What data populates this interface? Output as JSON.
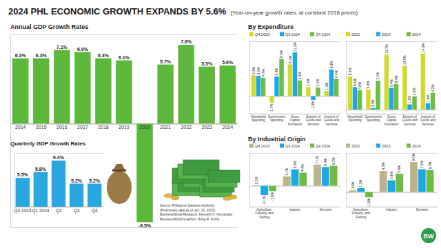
{
  "header": {
    "title": "2024 PHL ECONOMIC GROWTH EXPANDS BY 5.6%",
    "subtitle": "(Year-on-year growth rates, at constant 2018 prices)"
  },
  "source": [
    "Source: Philippine Statistics Authority",
    "(Preliminary data as of Jan. 30, 2025)",
    "BusinessWorld Research: Kenneth H. Hernandez",
    "BusinessWorld Graphics: Bong R. Fortin"
  ],
  "logo": "BW",
  "chart_data": [
    {
      "type": "bar",
      "title": "Annual GDP Growth Rates",
      "categories": [
        "2014",
        "2015",
        "2016",
        "2017",
        "2018",
        "2019",
        "2020",
        "2021",
        "2022",
        "2023",
        "2024"
      ],
      "values": [
        6.3,
        6.3,
        7.1,
        6.9,
        6.3,
        6.1,
        -9.5,
        5.7,
        7.6,
        5.5,
        5.6
      ],
      "value_labels": [
        "6.3%",
        "6.3%",
        "7.1%",
        "6.9%",
        "6.3%",
        "6.1%",
        "-9.5%",
        "5.7%",
        "7.6%",
        "5.5%",
        "5.6%"
      ],
      "color": "#5cb83a",
      "ylim": [
        -10,
        8.6
      ],
      "yticks": [
        0
      ],
      "data_labels": true,
      "tick_labels": "x"
    },
    {
      "type": "bar",
      "title": "Quarterly GDP Growth Rates",
      "categories": [
        "Q4 2023",
        "Q1 2024",
        "Q2",
        "Q3",
        "Q4"
      ],
      "values": [
        5.5,
        5.8,
        6.4,
        5.2,
        5.2
      ],
      "value_labels": [
        "5.5%",
        "5.8%",
        "6.4%",
        "5.2%",
        "5.2%"
      ],
      "color": "#29a7e1",
      "ylim": [
        4,
        6.8
      ],
      "yticks": [
        4
      ],
      "data_labels": true,
      "tick_labels": "x"
    },
    {
      "type": "bar",
      "title": "By Expenditure",
      "categories": [
        "Household Spending",
        "Government Spending",
        "Gross Capital Formation",
        "Exports of Goods and Services",
        "Imports of Goods and Services"
      ],
      "series": [
        {
          "name": "Q4 2023",
          "color": "#d3d92b",
          "values": [
            5.3,
            -1.7,
            8.1,
            2.3,
            1.3
          ],
          "value_labels": [
            "5.3%",
            "-1.7%",
            "8.1%",
            "2.3%",
            "1.3%"
          ]
        },
        {
          "name": "Q3 2024",
          "color": "#1ea7e6",
          "values": [
            5.2,
            5.0,
            11.2,
            -1.0,
            6.8
          ],
          "value_labels": [
            "5.2%",
            "5.0%",
            "11.2%",
            "-1.0%",
            "6.8%"
          ]
        },
        {
          "name": "Q4 2024",
          "color": "#6cbd45",
          "values": [
            4.7,
            9.5,
            4.0,
            2.2,
            4.4
          ],
          "value_labels": [
            "4.7%",
            "9.5%",
            "4.0%",
            "2.2%",
            "4.4%"
          ]
        }
      ],
      "ylim": [
        -4.5,
        14
      ],
      "yticks": [
        0
      ],
      "legend": "upper left",
      "data_labels": true,
      "tick_labels": "x"
    },
    {
      "type": "bar",
      "categories": [
        "Household Spending",
        "Government Spending",
        "Gross Capital Formation",
        "Exports of Goods and Services",
        "Imports of Goods and Services"
      ],
      "series": [
        {
          "name": "2022",
          "color": "#d3d92b",
          "values": [
            8.3,
            5.0,
            13.7,
            10.9,
            14.0
          ],
          "value_labels": [
            "8.3%",
            "5.0%",
            "13.7%",
            "10.9%",
            "14.0%"
          ]
        },
        {
          "name": "2023",
          "color": "#1ea7e6",
          "values": [
            5.6,
            0.4,
            5.4,
            1.3,
            1.6
          ],
          "value_labels": [
            "5.6%",
            "0.4%",
            "5.4%",
            "1.3%",
            "1.6%"
          ]
        },
        {
          "name": "2024",
          "color": "#6cbd45",
          "values": [
            4.8,
            7.2,
            6.4,
            3.3,
            4.2
          ],
          "value_labels": [
            "4.8%",
            "7.2%",
            "6.4%",
            "3.3%",
            "4.2%"
          ]
        }
      ],
      "ylim": [
        -1,
        17
      ],
      "yticks": [
        0
      ],
      "legend": "upper left",
      "data_labels": true,
      "tick_labels": "x"
    },
    {
      "type": "bar",
      "title": "By Industrial Origin",
      "categories": [
        "Agriculture, Forestry, and Fishing",
        "Industry",
        "Services"
      ],
      "series": [
        {
          "name": "Q4 2023",
          "color": "#bab38b",
          "values": [
            0.2,
            3.1,
            7.1
          ],
          "value_labels": [
            "0.2%",
            "3.1%",
            "7.1%"
          ]
        },
        {
          "name": "Q3 2024",
          "color": "#1ea7e6",
          "values": [
            -3.1,
            5.5,
            6.3
          ],
          "value_labels": [
            "-3.1%",
            "5.5%",
            "6.3%"
          ]
        },
        {
          "name": "Q4 2024",
          "color": "#6cbd45",
          "values": [
            -1.8,
            4.4,
            6.7
          ],
          "value_labels": [
            "-1.8%",
            "4.4%",
            "6.7%"
          ]
        }
      ],
      "ylim": [
        -7,
        11
      ],
      "yticks": [
        0
      ],
      "legend": "upper left",
      "data_labels": true,
      "tick_labels": "x"
    },
    {
      "type": "bar",
      "categories": [
        "Agriculture, Forestry, and Fishing",
        "Industry",
        "Services"
      ],
      "series": [
        {
          "name": "2022",
          "color": "#bab38b",
          "values": [
            0.5,
            6.5,
            9.2
          ],
          "value_labels": [
            "0.5%",
            "6.5%",
            "9.2%"
          ]
        },
        {
          "name": "2023",
          "color": "#1ea7e6",
          "values": [
            1.2,
            3.6,
            7.0
          ],
          "value_labels": [
            "1.2%",
            "3.6%",
            "7.0%"
          ]
        },
        {
          "name": "2024",
          "color": "#6cbd45",
          "values": [
            -1.6,
            5.6,
            6.7
          ],
          "value_labels": [
            "-1.6%",
            "5.6%",
            "6.7%"
          ]
        }
      ],
      "ylim": [
        -4.5,
        12
      ],
      "yticks": [
        0
      ],
      "legend": "upper left",
      "data_labels": true,
      "tick_labels": "x"
    }
  ]
}
